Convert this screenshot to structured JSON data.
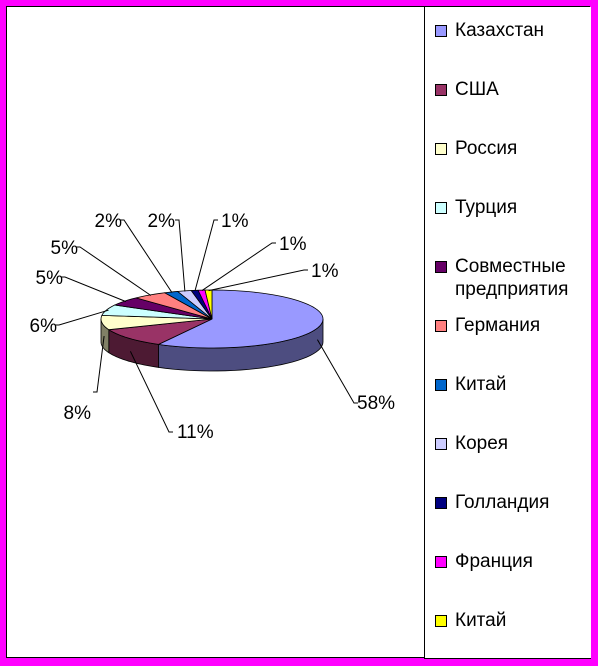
{
  "chart_data": {
    "type": "pie",
    "style": "3d",
    "title": "",
    "legend_position": "right",
    "slices": [
      {
        "label": "Казахстан",
        "percent_label": "58%",
        "value": 58,
        "color": "#9999ff"
      },
      {
        "label": "США",
        "percent_label": "11%",
        "value": 11,
        "color": "#993366"
      },
      {
        "label": "Россия",
        "percent_label": "8%",
        "value": 8,
        "color": "#ffffcc"
      },
      {
        "label": "Турция",
        "percent_label": "6%",
        "value": 6,
        "color": "#ccffff"
      },
      {
        "label": "Совместные предприятия",
        "percent_label": "5%",
        "value": 5,
        "color": "#660066"
      },
      {
        "label": "Германия",
        "percent_label": "5%",
        "value": 5,
        "color": "#ff8080"
      },
      {
        "label": "Китай",
        "percent_label": "2%",
        "value": 2,
        "color": "#0066cc"
      },
      {
        "label": "Корея",
        "percent_label": "2%",
        "value": 2,
        "color": "#ccccff"
      },
      {
        "label": "Голландия",
        "percent_label": "1%",
        "value": 1,
        "color": "#000080"
      },
      {
        "label": "Франция",
        "percent_label": "1%",
        "value": 1,
        "color": "#ff00ff"
      },
      {
        "label": "Китай",
        "percent_label": "1%",
        "value": 1,
        "color": "#ffff00"
      }
    ]
  }
}
